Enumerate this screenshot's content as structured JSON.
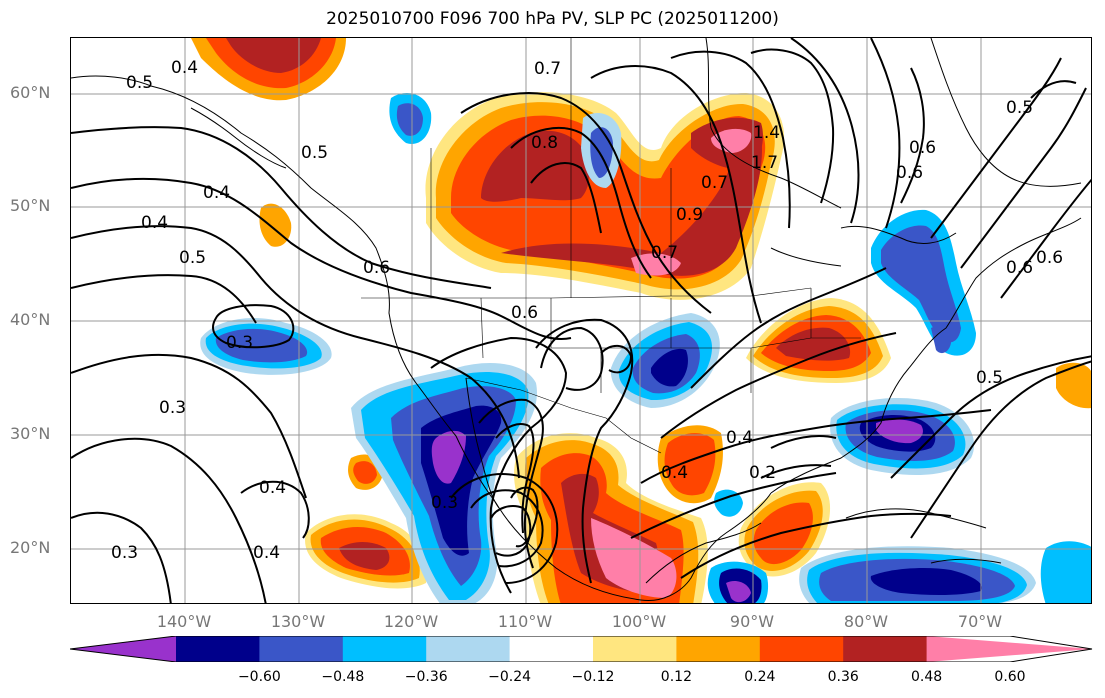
{
  "title": "2025010700 F096 700 hPa PV, SLP PC (2025011200)",
  "lat_labels": [
    "60°N",
    "50°N",
    "40°N",
    "30°N",
    "20°N"
  ],
  "lon_labels": [
    "140°W",
    "130°W",
    "120°W",
    "110°W",
    "100°W",
    "90°W",
    "80°W",
    "70°W"
  ],
  "colorbar": {
    "ticks": [
      "−0.60",
      "−0.48",
      "−0.36",
      "−0.24",
      "−0.12",
      "0.12",
      "0.24",
      "0.36",
      "0.48",
      "0.60"
    ],
    "colors": [
      "#9932cc",
      "#00008b",
      "#3a56c8",
      "#00bfff",
      "#add8f0",
      "#ffffff",
      "#ffe680",
      "#ffa500",
      "#ff4500",
      "#b22222",
      "#ff7fa8"
    ]
  },
  "contour_labels": [
    "0.4",
    "0.5",
    "0.5",
    "0.4",
    "0.4",
    "0.5",
    "0.6",
    "0.6",
    "0.7",
    "0.8",
    "0.7",
    "1.4",
    "1.7",
    "0.6",
    "0.5",
    "0.6",
    "0.7",
    "0.9",
    "0.3",
    "0.3",
    "0.4",
    "0.3",
    "0.4",
    "0.3",
    "0.5",
    "0.2",
    "0.4",
    "0.4",
    "0.6",
    "0.6"
  ]
}
